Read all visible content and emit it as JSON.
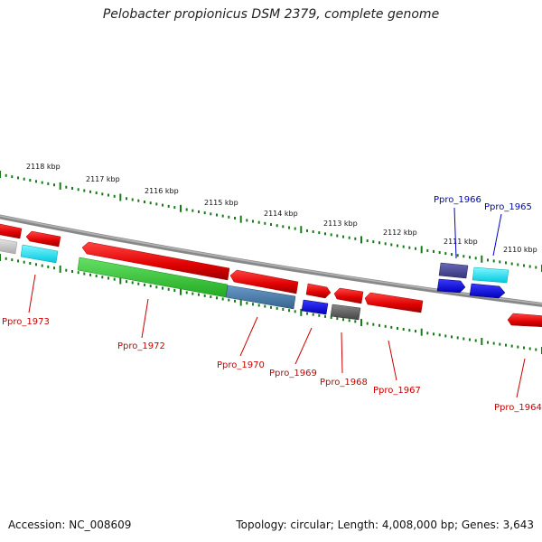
{
  "title": "Pelobacter propionicus DSM 2379, complete genome",
  "footer": {
    "accession": "Accession: NC_008609",
    "topology": "Topology: circular; Length: 4,008,000 bp; Genes: 3,643"
  },
  "colors": {
    "red": "#ff0000",
    "green": "#33cc33",
    "steelblue": "#4682b4",
    "blue": "#0000ff",
    "cyan": "#00e5ff",
    "grey": "#666666",
    "slate": "#4a4a9a",
    "lightgrey": "#cccccc",
    "scale": "#1a7a1a",
    "label_red": "#cc0000",
    "label_blue": "#0000cc"
  },
  "scale_labels": [
    "2118 kbp",
    "2117 kbp",
    "2116 kbp",
    "2115 kbp",
    "2114 kbp",
    "2113 kbp",
    "2112 kbp",
    "2111 kbp",
    "2110 kbp"
  ],
  "gene_labels": [
    {
      "text": "Ppro_1973",
      "color": "red"
    },
    {
      "text": "Ppro_1972",
      "color": "red"
    },
    {
      "text": "Ppro_1970",
      "color": "red"
    },
    {
      "text": "Ppro_1969",
      "color": "red"
    },
    {
      "text": "Ppro_1968",
      "color": "red"
    },
    {
      "text": "Ppro_1967",
      "color": "red"
    },
    {
      "text": "Ppro_1964",
      "color": "red"
    },
    {
      "text": "Ppro_1966",
      "color": "blue"
    },
    {
      "text": "Ppro_1965",
      "color": "blue"
    }
  ]
}
